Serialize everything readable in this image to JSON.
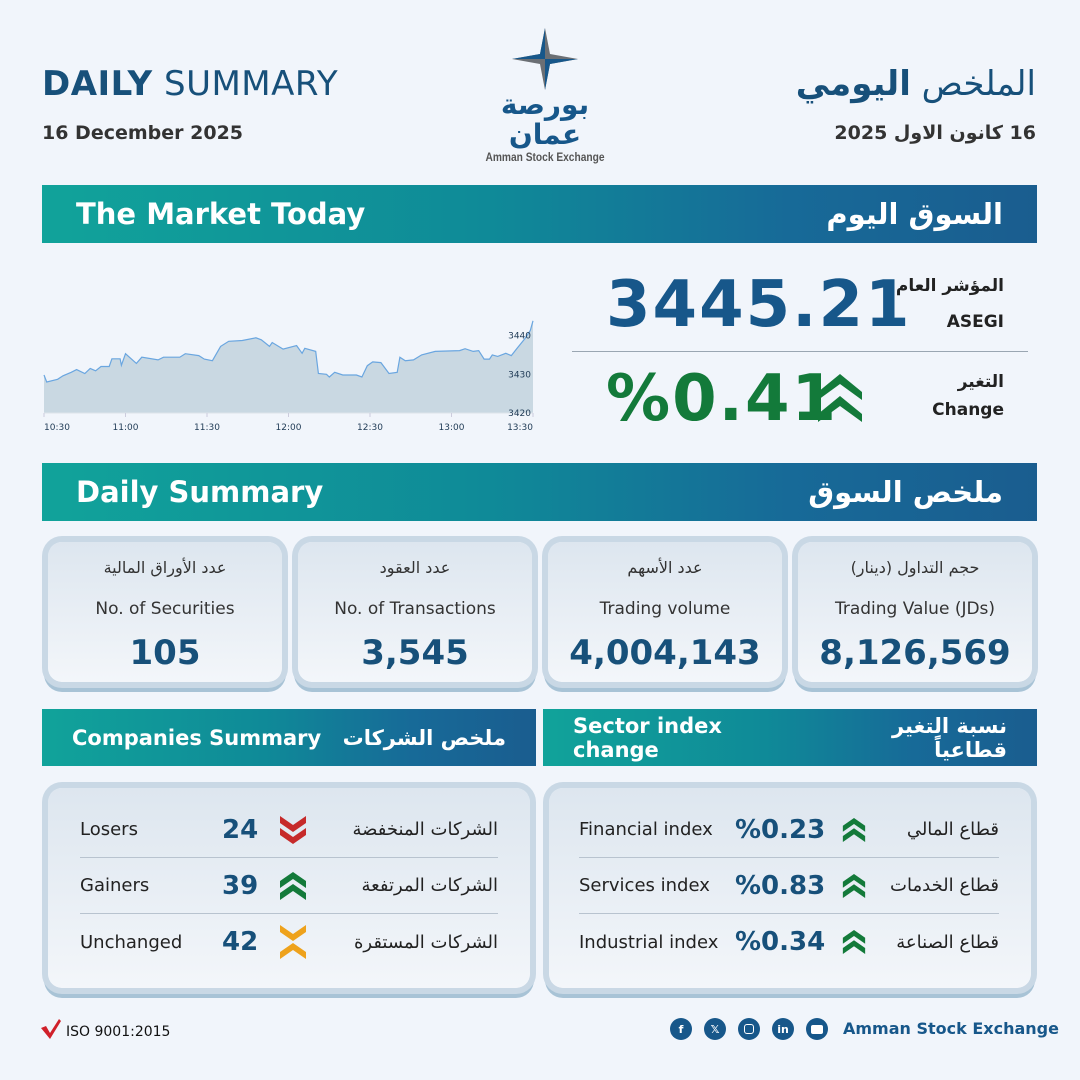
{
  "header": {
    "title_en_bold": "DAILY",
    "title_en_rest": " SUMMARY",
    "date_en": "16 December 2025",
    "title_ar_rest": "الملخص ",
    "title_ar_bold": "اليومي",
    "date_ar": "16 كانون الاول 2025"
  },
  "logo": {
    "ar": "بورصة عمان",
    "en": "Amman Stock Exchange"
  },
  "market": {
    "en": "The Market Today",
    "ar": "السوق اليوم"
  },
  "index": {
    "label_ar": "المؤشر العام",
    "label_en": "ASEGI",
    "value": "3445.21",
    "change_label_ar": "التغير",
    "change_label_en": "Change",
    "change": "%0.41",
    "direction": "up"
  },
  "chart_data": {
    "type": "area",
    "x_ticks": [
      "10:30",
      "11:00",
      "11:30",
      "12:00",
      "12:30",
      "13:00",
      "13:30"
    ],
    "y_ticks": [
      "3420",
      "3430",
      "3440"
    ],
    "ylim": [
      3420,
      3444
    ],
    "x_minutes_from_1030": [
      0,
      1,
      5,
      7,
      10,
      12,
      15,
      17,
      19,
      21,
      24,
      25,
      28,
      28.5,
      30,
      34,
      36,
      42,
      44,
      50,
      52,
      57,
      59,
      62,
      65,
      68,
      73,
      78,
      80,
      83,
      84,
      88,
      93,
      95,
      96,
      100,
      101,
      104,
      105,
      107,
      110,
      115,
      117,
      119,
      121,
      124,
      127,
      130,
      131,
      133,
      136,
      139,
      144,
      153,
      155,
      158,
      160,
      162,
      164,
      165,
      167,
      170,
      172,
      174,
      177,
      179,
      180
    ],
    "values": [
      3429.8,
      3428,
      3428.7,
      3429.6,
      3430.5,
      3431.2,
      3430.2,
      3431.5,
      3430.9,
      3432,
      3432,
      3434,
      3434,
      3432.3,
      3435.3,
      3432.8,
      3434.4,
      3433.7,
      3434.4,
      3434.4,
      3435.3,
      3434.8,
      3433.9,
      3433.5,
      3437.2,
      3438.5,
      3438.7,
      3439.4,
      3438.9,
      3437.2,
      3438.2,
      3436.5,
      3437.4,
      3435.4,
      3436.7,
      3435.9,
      3430.2,
      3430,
      3429.3,
      3430.5,
      3429.8,
      3429.8,
      3429.3,
      3432.2,
      3433.2,
      3433,
      3430.2,
      3430.5,
      3434.4,
      3433.5,
      3433.7,
      3435,
      3435.9,
      3436.1,
      3436.6,
      3435.9,
      3436.1,
      3433.9,
      3433.9,
      3435,
      3434.6,
      3435.4,
      3434.8,
      3436.6,
      3439.2,
      3441.3,
      3443.8
    ],
    "line_color": "#6aa6e0",
    "fill_color": "#c9d8e2",
    "grid": false
  },
  "summary": {
    "en": "Daily Summary",
    "ar": "ملخص السوق",
    "stats": [
      {
        "ar": "عدد الأوراق المالية",
        "en": "No. of Securities",
        "value": "105"
      },
      {
        "ar": "عدد العقود",
        "en": "No. of Transactions",
        "value": "3,545"
      },
      {
        "ar": "عدد الأسهم",
        "en": "Trading volume",
        "value": "4,004,143"
      },
      {
        "ar": "حجم التداول (دينار)",
        "en": "Trading Value (JDs)",
        "value": "8,126,569"
      }
    ]
  },
  "companies": {
    "en": "Companies Summary",
    "ar": "ملخص الشركات",
    "rows": [
      {
        "en": "Losers",
        "value": "24",
        "ar": "الشركات المنخفضة",
        "icon": "double-chevron-down",
        "color": "#c62a2a"
      },
      {
        "en": "Gainers",
        "value": "39",
        "ar": "الشركات المرتفعة",
        "icon": "double-chevron-up",
        "color": "#137a3a"
      },
      {
        "en": "Unchanged",
        "value": "42",
        "ar": "الشركات المستقرة",
        "icon": "chevrons-converge",
        "color": "#eea21c"
      }
    ]
  },
  "sectors": {
    "en": "Sector index change",
    "ar": "نسبة التغير قطاعياً",
    "rows": [
      {
        "en": "Financial index",
        "value": "%0.23",
        "ar": "قطاع المالي",
        "direction": "up"
      },
      {
        "en": "Services index",
        "value": "%0.83",
        "ar": "قطاع الخدمات",
        "direction": "up"
      },
      {
        "en": "Industrial index",
        "value": "%0.34",
        "ar": "قطاع الصناعة",
        "direction": "up"
      }
    ]
  },
  "footer": {
    "iso": "ISO 9001:2015",
    "brand": "Amman Stock Exchange",
    "social": [
      "facebook",
      "x",
      "instagram",
      "linkedin",
      "youtube"
    ]
  },
  "colors": {
    "brand": "#17507a",
    "up": "#137a3a",
    "down": "#c62a2a",
    "neutral": "#eea21c"
  }
}
